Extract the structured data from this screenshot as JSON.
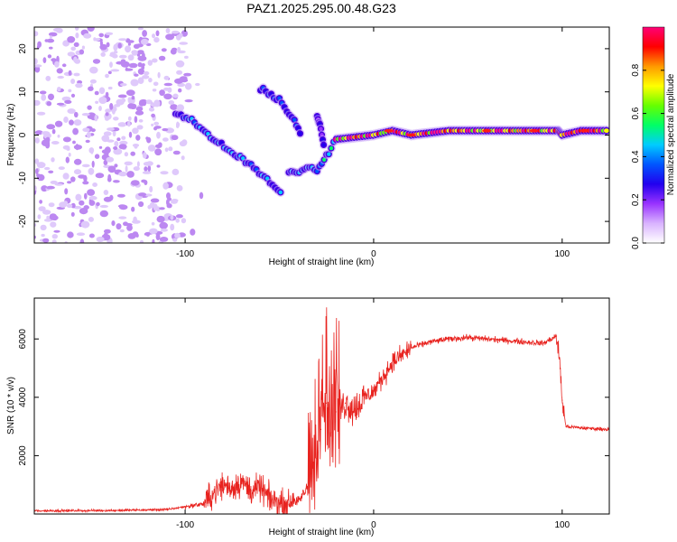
{
  "title": "PAZ1.2025.295.00.48.G23",
  "chart_data": [
    {
      "type": "heatmap",
      "id": "spectrogram",
      "xlabel": "Height of straight line (km)",
      "ylabel": "Frequency (Hz)",
      "xlim": [
        -180,
        125
      ],
      "ylim": [
        -25,
        25
      ],
      "xticks": [
        -100,
        0,
        100
      ],
      "yticks": [
        -20,
        -10,
        0,
        10,
        20
      ],
      "colorbar": {
        "label": "Normalized spectral amplitude",
        "range": [
          0,
          1
        ],
        "ticks": [
          "0.0",
          "0.2",
          "0.4",
          "0.6",
          "0.8"
        ],
        "tick_values": [
          0.0,
          0.2,
          0.4,
          0.6,
          0.8
        ],
        "colors": [
          "#ffffff",
          "#d9b3ff",
          "#9933ff",
          "#2200ee",
          "#0055ff",
          "#00ccff",
          "#00ff66",
          "#66ff00",
          "#ffff00",
          "#ff9900",
          "#ff0000",
          "#ff0077"
        ]
      },
      "features": [
        {
          "name": "noisy-low-altitude-region",
          "x_range": [
            -180,
            -100
          ],
          "freq_range": [
            -25,
            25
          ],
          "amplitude": 0.12
        },
        {
          "name": "main-descending-track",
          "points": [
            [
              -105,
              5
            ],
            [
              -95,
              3
            ],
            [
              -85,
              -1
            ],
            [
              -75,
              -4
            ],
            [
              -65,
              -7
            ],
            [
              -55,
              -11
            ],
            [
              -48,
              -14
            ]
          ],
          "amplitude": 0.35
        },
        {
          "name": "upper-branch",
          "points": [
            [
              -60,
              11
            ],
            [
              -50,
              8
            ],
            [
              -42,
              3
            ],
            [
              -38,
              0
            ]
          ],
          "amplitude": 0.3
        },
        {
          "name": "middle-branch",
          "points": [
            [
              -45,
              -9
            ],
            [
              -38,
              -8
            ],
            [
              -30,
              -8
            ],
            [
              -25,
              -5
            ],
            [
              -20,
              -1
            ]
          ],
          "amplitude": 0.4
        },
        {
          "name": "small-spur",
          "points": [
            [
              -30,
              5
            ],
            [
              -28,
              1
            ],
            [
              -26,
              -3
            ]
          ],
          "amplitude": 0.25
        },
        {
          "name": "stable-carrier-band",
          "points": [
            [
              -20,
              -1
            ],
            [
              0,
              0
            ],
            [
              10,
              1
            ],
            [
              20,
              0
            ],
            [
              40,
              1
            ],
            [
              80,
              1
            ],
            [
              98,
              1
            ],
            [
              100,
              0
            ],
            [
              110,
              1
            ],
            [
              125,
              1
            ]
          ],
          "amplitude": 0.85
        }
      ]
    },
    {
      "type": "line",
      "id": "snr",
      "xlabel": "Height of straight line (km)",
      "ylabel": "SNR (10 * v/v)",
      "xlim": [
        -180,
        125
      ],
      "ylim": [
        0,
        7400
      ],
      "xticks": [
        -100,
        0,
        100
      ],
      "yticks": [
        2000,
        4000,
        6000
      ],
      "color": "#e8231f",
      "series": [
        {
          "name": "SNR",
          "x": [
            -180,
            -140,
            -110,
            -100,
            -90,
            -85,
            -80,
            -75,
            -70,
            -65,
            -60,
            -55,
            -50,
            -45,
            -40,
            -35,
            -30,
            -28,
            -25,
            -22,
            -20,
            -15,
            -10,
            -5,
            0,
            10,
            20,
            30,
            40,
            50,
            60,
            70,
            80,
            90,
            97,
            99,
            100,
            102,
            110,
            125
          ],
          "y": [
            110,
            120,
            150,
            250,
            350,
            700,
            1000,
            900,
            1100,
            800,
            900,
            500,
            380,
            320,
            450,
            900,
            1900,
            2900,
            3800,
            2800,
            3500,
            3800,
            3600,
            4000,
            4200,
            5200,
            5700,
            5900,
            6000,
            6050,
            6000,
            5950,
            5900,
            5850,
            6100,
            5000,
            3900,
            3000,
            2950,
            2900
          ]
        }
      ]
    }
  ]
}
